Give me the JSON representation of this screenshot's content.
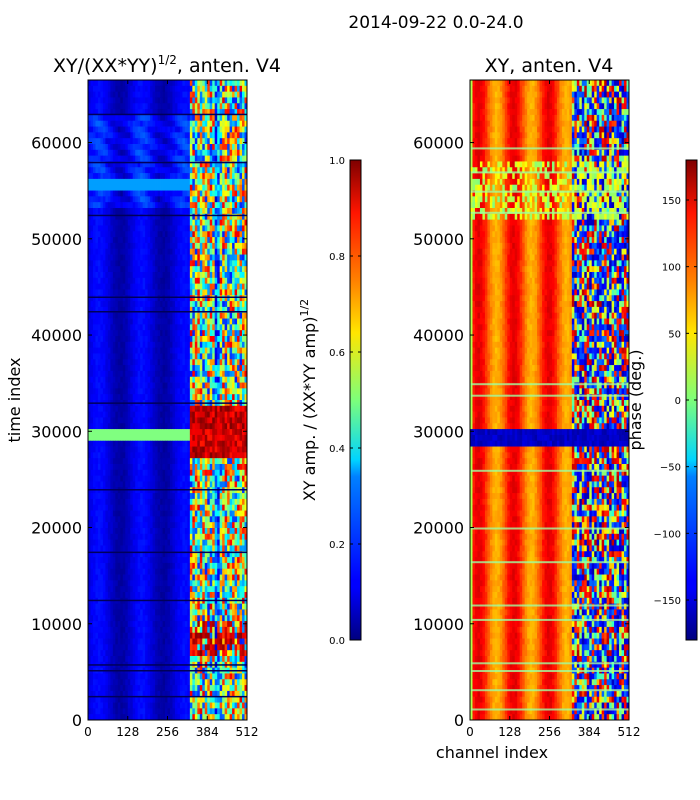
{
  "figure": {
    "suptitle": "2014-09-22 0.0-24.0"
  },
  "chart_data": [
    {
      "type": "heatmap",
      "title": "XY/(XX*YY)",
      "title_exponent": "1/2",
      "title_suffix": ", anten. V4",
      "xlabel": "",
      "ylabel": "time index",
      "xlim": [
        0,
        512
      ],
      "ylim": [
        0,
        66500
      ],
      "x_ticks": [
        0,
        128,
        256,
        384,
        512
      ],
      "y_ticks": [
        0,
        10000,
        20000,
        30000,
        40000,
        50000,
        60000
      ],
      "colormap": "jet",
      "colorbar": {
        "label": "XY amp. / (XX*YY amp)",
        "label_exponent": "1/2",
        "range": [
          0.0,
          1.0
        ],
        "ticks": [
          "0.0",
          "0.2",
          "0.4",
          "0.6",
          "0.8",
          "1.0"
        ]
      },
      "features": [
        {
          "description": "low-amplitude background",
          "channels": [
            0,
            330
          ],
          "value": 0.08
        },
        {
          "description": "variable high-channel region",
          "channels": [
            330,
            512
          ],
          "value": 0.55
        },
        {
          "description": "bright band",
          "time": [
            29000,
            30000
          ],
          "value": 0.55
        },
        {
          "description": "saturated cells",
          "time": [
            27500,
            32500
          ],
          "channels": [
            330,
            500
          ],
          "value": 0.95
        },
        {
          "description": "saturated cells",
          "time": [
            6500,
            10500
          ],
          "channels": [
            330,
            500
          ],
          "value": 0.9
        }
      ]
    },
    {
      "type": "heatmap",
      "title": "XY, anten. V4",
      "xlabel": "channel index",
      "ylabel": "",
      "xlim": [
        0,
        512
      ],
      "ylim": [
        0,
        66500
      ],
      "x_ticks": [
        0,
        128,
        256,
        384,
        512
      ],
      "y_ticks": [
        0,
        10000,
        20000,
        30000,
        40000,
        50000,
        60000
      ],
      "colormap": "jet",
      "colorbar": {
        "label": "phase (deg.)",
        "range": [
          -180,
          180
        ],
        "ticks": [
          "−150",
          "−100",
          "−50",
          "0",
          "50",
          "100",
          "150"
        ]
      },
      "features": [
        {
          "description": "phase ~90-150 deg with vertical striping",
          "channels": [
            0,
            330
          ],
          "value": 120
        },
        {
          "description": "mixed phase region",
          "channels": [
            330,
            512
          ],
          "value": 0
        },
        {
          "description": "dark blue band",
          "time": [
            28500,
            30200
          ],
          "value": -170
        },
        {
          "description": "horizontal bands near zero phase",
          "time": [
            52000,
            58000
          ],
          "value": 10
        }
      ]
    }
  ]
}
